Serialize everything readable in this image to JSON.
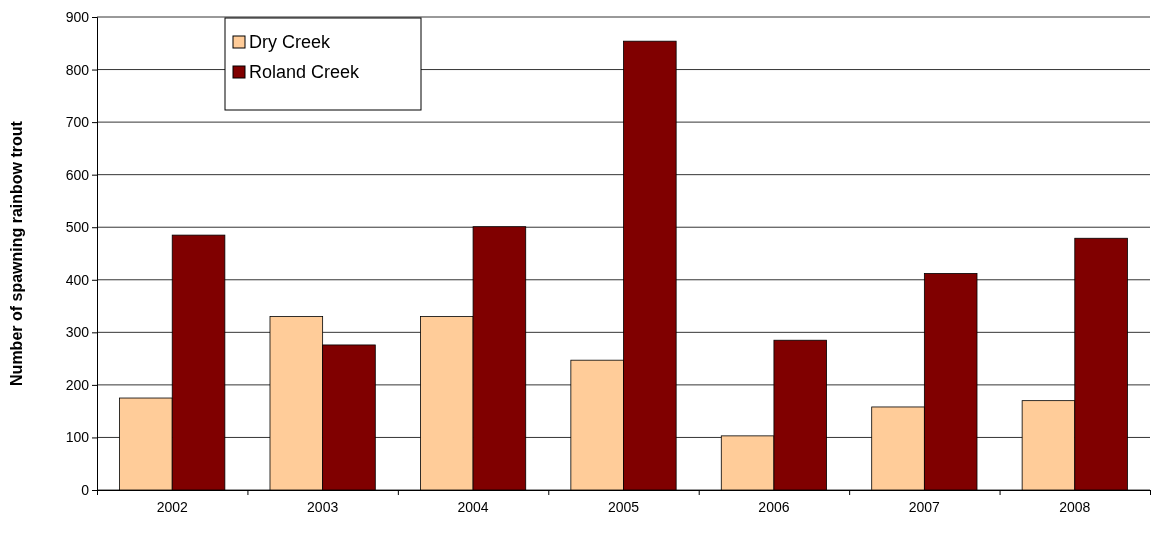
{
  "chart_data": {
    "type": "bar",
    "ylabel": "Number of spawning rainbow trout",
    "categories": [
      "2002",
      "2003",
      "2004",
      "2005",
      "2006",
      "2007",
      "2008"
    ],
    "series": [
      {
        "name": "Dry Creek",
        "color": "#ffcc99",
        "values": [
          175,
          330,
          330,
          247,
          103,
          158,
          170
        ]
      },
      {
        "name": "Roland Creek",
        "color": "#800000",
        "values": [
          485,
          276,
          501,
          854,
          285,
          412,
          479
        ]
      }
    ],
    "ylim": [
      0,
      900
    ],
    "yticks": [
      0,
      100,
      200,
      300,
      400,
      500,
      600,
      700,
      800,
      900
    ],
    "grid": "y",
    "legend": "top left"
  }
}
